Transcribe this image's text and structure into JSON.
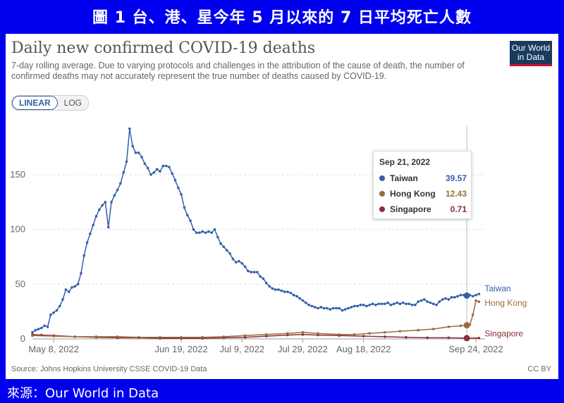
{
  "banner": {
    "title": "圖 1  台、港、星今年 5 月以來的 7 日平均死亡人數"
  },
  "header": {
    "title": "Daily new confirmed COVID-19 deaths",
    "subtitle": "7-day rolling average. Due to varying protocols and challenges in the attribution of the cause of death, the number of confirmed deaths may not accurately represent the true number of deaths caused by COVID-19.",
    "logo_line1": "Our World",
    "logo_line2": "in Data"
  },
  "scale_toggle": {
    "linear_label": "LINEAR",
    "log_label": "LOG",
    "selected": "LINEAR"
  },
  "footer": {
    "source": "Source: Johns Hopkins University CSSE COVID-19 Data",
    "license": "CC BY"
  },
  "credit": "來源：Our World in Data",
  "tooltip": {
    "date": "Sep 21, 2022",
    "rows": [
      {
        "name": "Taiwan",
        "value": "39.57",
        "color": "#3360a9"
      },
      {
        "name": "Hong Kong",
        "value": "12.43",
        "color": "#996d39"
      },
      {
        "name": "Singapore",
        "value": "0.71",
        "color": "#883039"
      }
    ]
  },
  "chart_data": {
    "type": "line",
    "title": "Daily new confirmed COVID-19 deaths",
    "x_start": "2022-05-01",
    "x_end": "2022-09-27",
    "x_ticks": [
      {
        "label": "May 8, 2022",
        "date": "2022-05-08"
      },
      {
        "label": "Jun 19, 2022",
        "date": "2022-06-19"
      },
      {
        "label": "Jul 9, 2022",
        "date": "2022-07-09"
      },
      {
        "label": "Jul 29, 2022",
        "date": "2022-07-29"
      },
      {
        "label": "Aug 18, 2022",
        "date": "2022-08-18"
      },
      {
        "label": "Sep 24, 2022",
        "date": "2022-09-24"
      }
    ],
    "y_ticks": [
      0,
      50,
      100,
      150
    ],
    "ylim": [
      0,
      195
    ],
    "grid": "horizontal dashed",
    "legend": "end-of-line labels",
    "hover_date": "2022-09-21",
    "series": [
      {
        "name": "Taiwan",
        "color": "#3360a9",
        "points": [
          [
            "2022-05-01",
            6
          ],
          [
            "2022-05-02",
            8
          ],
          [
            "2022-05-03",
            9
          ],
          [
            "2022-05-04",
            10
          ],
          [
            "2022-05-05",
            12
          ],
          [
            "2022-05-06",
            11
          ],
          [
            "2022-05-07",
            22
          ],
          [
            "2022-05-08",
            24
          ],
          [
            "2022-05-09",
            26
          ],
          [
            "2022-05-10",
            30
          ],
          [
            "2022-05-11",
            36
          ],
          [
            "2022-05-12",
            45
          ],
          [
            "2022-05-13",
            43
          ],
          [
            "2022-05-14",
            47
          ],
          [
            "2022-05-15",
            48
          ],
          [
            "2022-05-16",
            50
          ],
          [
            "2022-05-17",
            60
          ],
          [
            "2022-05-18",
            76
          ],
          [
            "2022-05-19",
            88
          ],
          [
            "2022-05-20",
            96
          ],
          [
            "2022-05-21",
            104
          ],
          [
            "2022-05-22",
            112
          ],
          [
            "2022-05-23",
            118
          ],
          [
            "2022-05-24",
            122
          ],
          [
            "2022-05-25",
            125
          ],
          [
            "2022-05-26",
            102
          ],
          [
            "2022-05-27",
            125
          ],
          [
            "2022-05-28",
            131
          ],
          [
            "2022-05-29",
            136
          ],
          [
            "2022-05-30",
            142
          ],
          [
            "2022-05-31",
            152
          ],
          [
            "2022-06-01",
            162
          ],
          [
            "2022-06-02",
            192
          ],
          [
            "2022-06-03",
            176
          ],
          [
            "2022-06-04",
            170
          ],
          [
            "2022-06-05",
            170
          ],
          [
            "2022-06-06",
            166
          ],
          [
            "2022-06-07",
            160
          ],
          [
            "2022-06-08",
            156
          ],
          [
            "2022-06-09",
            150
          ],
          [
            "2022-06-10",
            152
          ],
          [
            "2022-06-11",
            155
          ],
          [
            "2022-06-12",
            153
          ],
          [
            "2022-06-13",
            158
          ],
          [
            "2022-06-14",
            158
          ],
          [
            "2022-06-15",
            157
          ],
          [
            "2022-06-16",
            151
          ],
          [
            "2022-06-17",
            145
          ],
          [
            "2022-06-18",
            138
          ],
          [
            "2022-06-19",
            132
          ],
          [
            "2022-06-20",
            120
          ],
          [
            "2022-06-21",
            113
          ],
          [
            "2022-06-22",
            108
          ],
          [
            "2022-06-23",
            100
          ],
          [
            "2022-06-24",
            97
          ],
          [
            "2022-06-25",
            97
          ],
          [
            "2022-06-26",
            98
          ],
          [
            "2022-06-27",
            97
          ],
          [
            "2022-06-28",
            98
          ],
          [
            "2022-06-29",
            97
          ],
          [
            "2022-06-30",
            100
          ],
          [
            "2022-07-01",
            93
          ],
          [
            "2022-07-02",
            87
          ],
          [
            "2022-07-03",
            84
          ],
          [
            "2022-07-04",
            81
          ],
          [
            "2022-07-05",
            78
          ],
          [
            "2022-07-06",
            73
          ],
          [
            "2022-07-07",
            70
          ],
          [
            "2022-07-08",
            71
          ],
          [
            "2022-07-09",
            69
          ],
          [
            "2022-07-10",
            66
          ],
          [
            "2022-07-11",
            62
          ],
          [
            "2022-07-12",
            61
          ],
          [
            "2022-07-13",
            61
          ],
          [
            "2022-07-14",
            61
          ],
          [
            "2022-07-15",
            57
          ],
          [
            "2022-07-16",
            55
          ],
          [
            "2022-07-17",
            51
          ],
          [
            "2022-07-18",
            48
          ],
          [
            "2022-07-19",
            46
          ],
          [
            "2022-07-20",
            45
          ],
          [
            "2022-07-21",
            45
          ],
          [
            "2022-07-22",
            44
          ],
          [
            "2022-07-23",
            43
          ],
          [
            "2022-07-24",
            43
          ],
          [
            "2022-07-25",
            42
          ],
          [
            "2022-07-26",
            40
          ],
          [
            "2022-07-27",
            39
          ],
          [
            "2022-07-28",
            37
          ],
          [
            "2022-07-29",
            35
          ],
          [
            "2022-07-30",
            33
          ],
          [
            "2022-07-31",
            31
          ],
          [
            "2022-08-01",
            30
          ],
          [
            "2022-08-02",
            29
          ],
          [
            "2022-08-03",
            28
          ],
          [
            "2022-08-04",
            29
          ],
          [
            "2022-08-05",
            28
          ],
          [
            "2022-08-06",
            28
          ],
          [
            "2022-08-07",
            27
          ],
          [
            "2022-08-08",
            28
          ],
          [
            "2022-08-09",
            28
          ],
          [
            "2022-08-10",
            28
          ],
          [
            "2022-08-11",
            26
          ],
          [
            "2022-08-12",
            27
          ],
          [
            "2022-08-13",
            28
          ],
          [
            "2022-08-14",
            29
          ],
          [
            "2022-08-15",
            30
          ],
          [
            "2022-08-16",
            30
          ],
          [
            "2022-08-17",
            31
          ],
          [
            "2022-08-18",
            31
          ],
          [
            "2022-08-19",
            30
          ],
          [
            "2022-08-20",
            31
          ],
          [
            "2022-08-21",
            32
          ],
          [
            "2022-08-22",
            31
          ],
          [
            "2022-08-23",
            32
          ],
          [
            "2022-08-24",
            32
          ],
          [
            "2022-08-25",
            32
          ],
          [
            "2022-08-26",
            33
          ],
          [
            "2022-08-27",
            31
          ],
          [
            "2022-08-28",
            32
          ],
          [
            "2022-08-29",
            33
          ],
          [
            "2022-08-30",
            32
          ],
          [
            "2022-08-31",
            33
          ],
          [
            "2022-09-01",
            32
          ],
          [
            "2022-09-02",
            32
          ],
          [
            "2022-09-03",
            31
          ],
          [
            "2022-09-04",
            31
          ],
          [
            "2022-09-05",
            34
          ],
          [
            "2022-09-06",
            35
          ],
          [
            "2022-09-07",
            36
          ],
          [
            "2022-09-08",
            34
          ],
          [
            "2022-09-09",
            33
          ],
          [
            "2022-09-10",
            32
          ],
          [
            "2022-09-11",
            31
          ],
          [
            "2022-09-12",
            34
          ],
          [
            "2022-09-13",
            36
          ],
          [
            "2022-09-14",
            37
          ],
          [
            "2022-09-15",
            36
          ],
          [
            "2022-09-16",
            38
          ],
          [
            "2022-09-17",
            38
          ],
          [
            "2022-09-18",
            39
          ],
          [
            "2022-09-19",
            40
          ],
          [
            "2022-09-20",
            40
          ],
          [
            "2022-09-21",
            39.57
          ],
          [
            "2022-09-22",
            40
          ],
          [
            "2022-09-23",
            39
          ],
          [
            "2022-09-24",
            40
          ],
          [
            "2022-09-25",
            41
          ]
        ]
      },
      {
        "name": "Hong Kong",
        "color": "#996d39",
        "points": [
          [
            "2022-05-01",
            3
          ],
          [
            "2022-05-08",
            2.5
          ],
          [
            "2022-05-15",
            2
          ],
          [
            "2022-05-22",
            2
          ],
          [
            "2022-05-29",
            2
          ],
          [
            "2022-06-05",
            1.5
          ],
          [
            "2022-06-12",
            1.5
          ],
          [
            "2022-06-19",
            1.5
          ],
          [
            "2022-06-26",
            1.5
          ],
          [
            "2022-07-03",
            2
          ],
          [
            "2022-07-10",
            3
          ],
          [
            "2022-07-17",
            4
          ],
          [
            "2022-07-24",
            5
          ],
          [
            "2022-07-29",
            6
          ],
          [
            "2022-08-03",
            5
          ],
          [
            "2022-08-10",
            4
          ],
          [
            "2022-08-15",
            4
          ],
          [
            "2022-08-20",
            5
          ],
          [
            "2022-08-25",
            6
          ],
          [
            "2022-08-30",
            7
          ],
          [
            "2022-09-05",
            8
          ],
          [
            "2022-09-10",
            9
          ],
          [
            "2022-09-15",
            11
          ],
          [
            "2022-09-19",
            12
          ],
          [
            "2022-09-21",
            12.43
          ],
          [
            "2022-09-22",
            13
          ],
          [
            "2022-09-23",
            22
          ],
          [
            "2022-09-24",
            35
          ],
          [
            "2022-09-25",
            34
          ]
        ]
      },
      {
        "name": "Singapore",
        "color": "#883039",
        "points": [
          [
            "2022-05-01",
            4
          ],
          [
            "2022-05-04",
            3.5
          ],
          [
            "2022-05-08",
            3
          ],
          [
            "2022-05-15",
            2
          ],
          [
            "2022-05-22",
            1.5
          ],
          [
            "2022-05-29",
            1
          ],
          [
            "2022-06-05",
            1
          ],
          [
            "2022-06-12",
            0.5
          ],
          [
            "2022-06-19",
            0.5
          ],
          [
            "2022-06-26",
            0.5
          ],
          [
            "2022-07-03",
            1
          ],
          [
            "2022-07-10",
            1.5
          ],
          [
            "2022-07-17",
            2.5
          ],
          [
            "2022-07-24",
            3.5
          ],
          [
            "2022-07-29",
            4
          ],
          [
            "2022-08-03",
            3.5
          ],
          [
            "2022-08-10",
            3
          ],
          [
            "2022-08-18",
            2.5
          ],
          [
            "2022-08-25",
            2
          ],
          [
            "2022-09-01",
            1.5
          ],
          [
            "2022-09-08",
            1
          ],
          [
            "2022-09-15",
            1
          ],
          [
            "2022-09-21",
            0.71
          ],
          [
            "2022-09-25",
            0.8
          ]
        ]
      }
    ]
  }
}
